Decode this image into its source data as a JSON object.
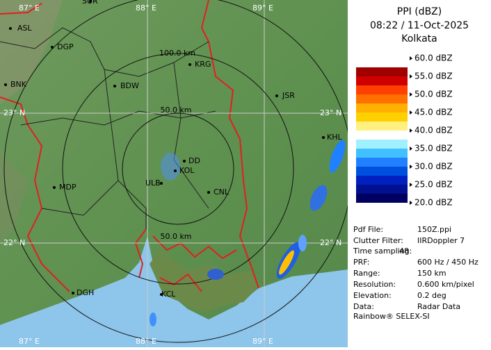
{
  "header": {
    "title": "PPI (dBZ)",
    "time": "08:22 / 11-Oct-2025",
    "station": "Kolkata"
  },
  "legend": {
    "labels": [
      "60.0 dBZ",
      "55.0 dBZ",
      "50.0 dBZ",
      "45.0 dBZ",
      "40.0 dBZ",
      "35.0 dBZ",
      "30.0 dBZ",
      "25.0 dBZ",
      "20.0 dBZ"
    ],
    "bands": [
      [
        "#ffffff",
        "#a00000"
      ],
      [
        "#d00000",
        "#ff4000"
      ],
      [
        "#ff7000",
        "#ffb000"
      ],
      [
        "#ffd000",
        "#fff080"
      ],
      [
        "#ffffff",
        "#a0f0ff"
      ],
      [
        "#40c0ff",
        "#2080ff"
      ],
      [
        "#0050e0",
        "#0020c0"
      ],
      [
        "#001090",
        "#000060"
      ]
    ]
  },
  "info": [
    [
      "Pdf File:",
      "150Z.ppi"
    ],
    [
      "Clutter Filter:",
      "IIRDoppler 7"
    ],
    [
      "Time sampling:",
      "48"
    ],
    [
      "PRF:",
      "600 Hz / 450 Hz"
    ],
    [
      "Range:",
      "150 km"
    ],
    [
      "Resolution:",
      "0.600 km/pixel"
    ],
    [
      "Elevation:",
      "0.2 deg"
    ],
    [
      "Data:",
      "Radar Data"
    ]
  ],
  "footer": "Rainbow® SELEX-SI",
  "map": {
    "places": [
      "SUR",
      "ASL",
      "DGP",
      "BNK",
      "BDW",
      "KRG",
      "JSR",
      "KHL",
      "DD",
      "KOL",
      "ULB",
      "CNL",
      "MDP",
      "DGH",
      "KCL"
    ],
    "rings": [
      "100.0 km",
      "50.0 km",
      "50.0 km"
    ],
    "grid": [
      "87° E",
      "88° E",
      "89° E",
      "23° N",
      "23° N",
      "22° N",
      "22° N",
      "87° E",
      "88° E",
      "89° E"
    ]
  }
}
